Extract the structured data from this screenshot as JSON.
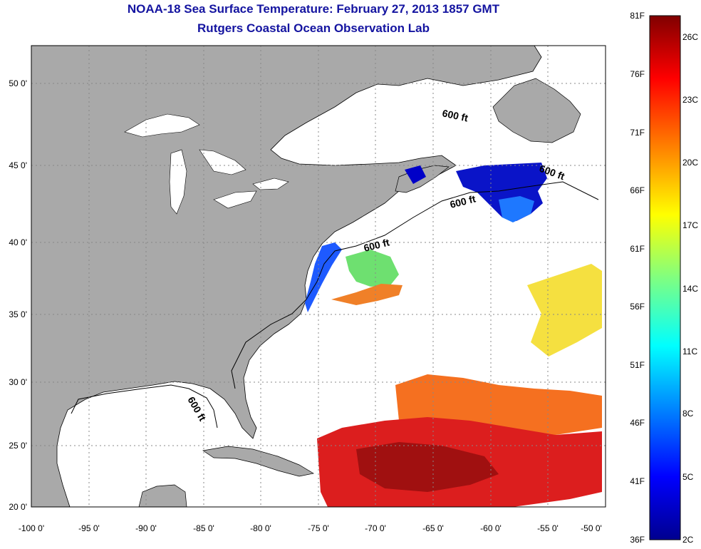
{
  "title": {
    "line1": "NOAA-18 Sea Surface Temperature:  February 27, 2013 1857 GMT",
    "line2": "Rutgers Coastal Ocean Observation Lab"
  },
  "axes": {
    "longitude_ticks": [
      "-100 0'",
      "-95 0'",
      "-90 0'",
      "-85 0'",
      "-80 0'",
      "-75 0'",
      "-70 0'",
      "-65 0'",
      "-60 0'",
      "-55 0'",
      "-50 0'"
    ],
    "latitude_ticks": [
      "50 0'",
      "45 0'",
      "40 0'",
      "35 0'",
      "30 0'",
      "25 0'",
      "20 0'"
    ]
  },
  "contour_label": "600 ft",
  "colorbar": {
    "fahrenheit": [
      "81F",
      "76F",
      "71F",
      "66F",
      "61F",
      "56F",
      "51F",
      "46F",
      "41F",
      "36F"
    ],
    "celsius": [
      "26C",
      "23C",
      "20C",
      "17C",
      "14C",
      "11C",
      "8C",
      "5C",
      "2C"
    ],
    "colors": [
      "#00008f",
      "#0000ff",
      "#0080ff",
      "#00ffff",
      "#80ff80",
      "#ffff00",
      "#ff8000",
      "#ff0000",
      "#800000"
    ]
  },
  "colors": {
    "land": "#a9a9a9",
    "title": "#1414a0",
    "grid": "#888888"
  }
}
